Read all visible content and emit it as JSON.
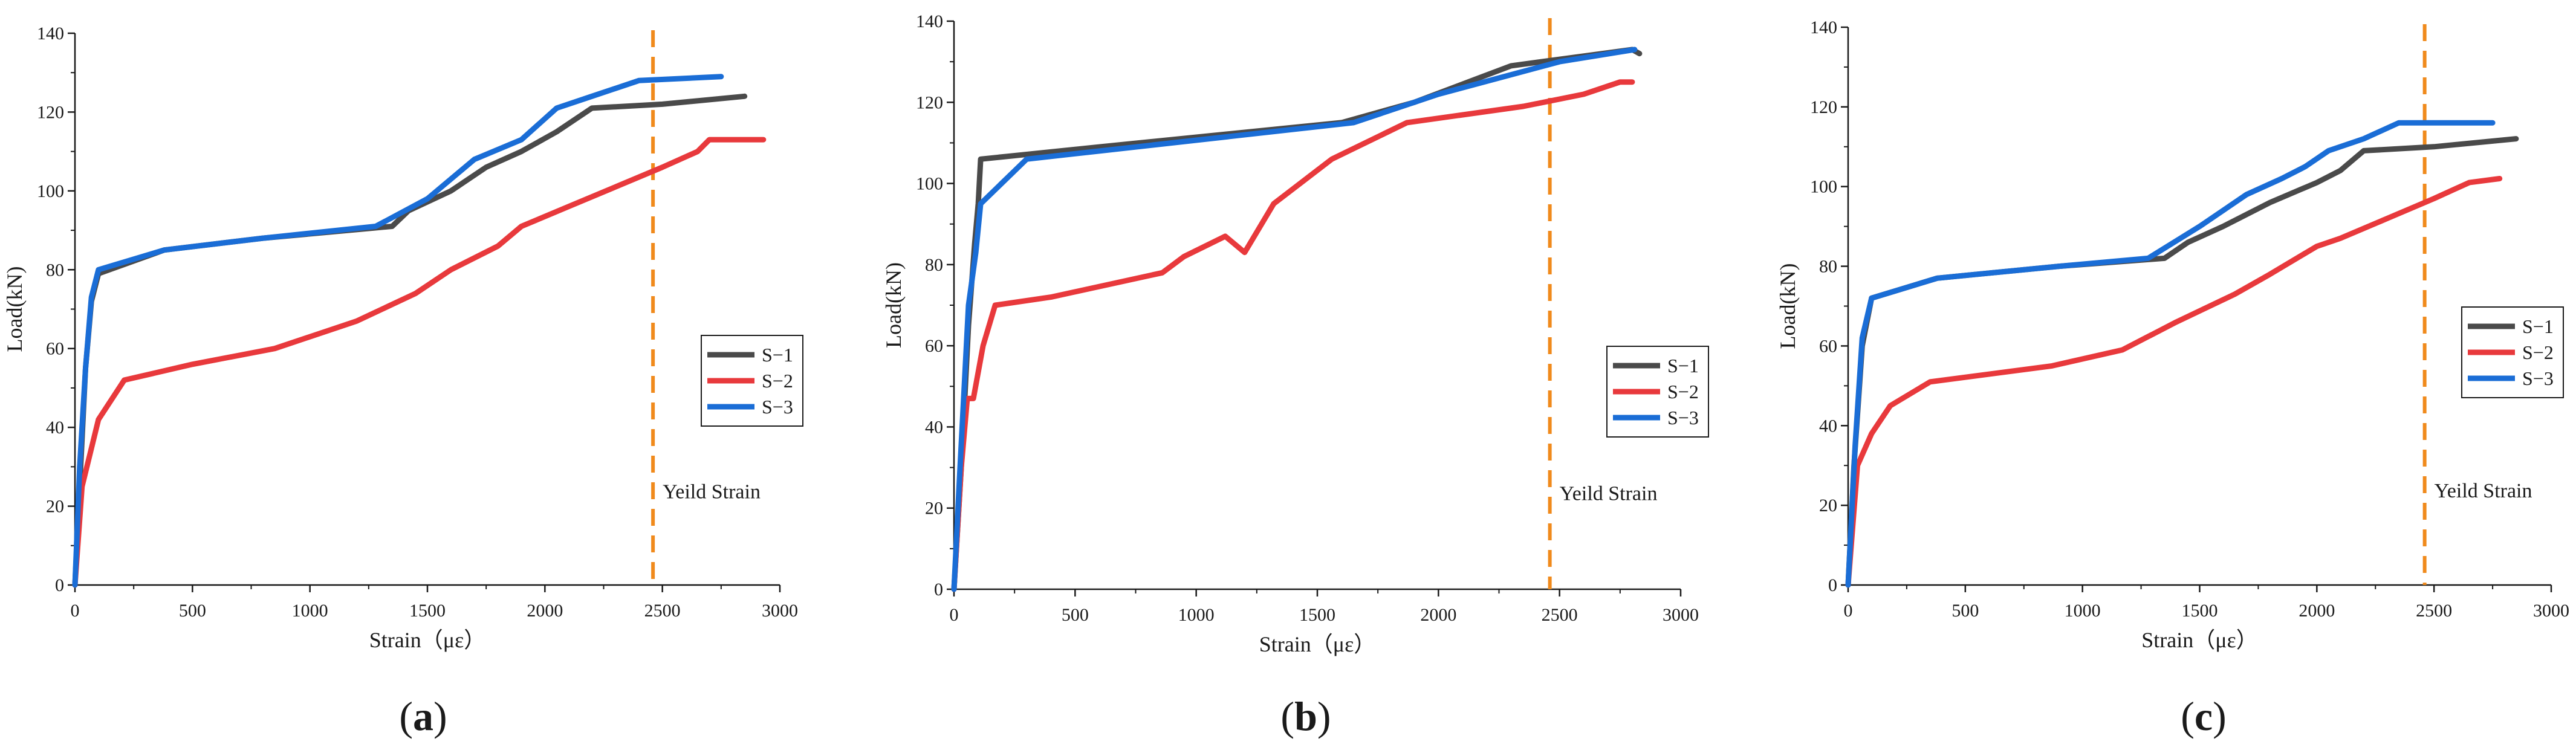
{
  "chart_data": [
    {
      "type": "line",
      "panel_label": "(a)",
      "xlabel": "Strain（με）",
      "ylabel": "Load(kN)",
      "xlim": [
        0,
        3000
      ],
      "ylim": [
        0,
        140
      ],
      "xticks": [
        0,
        500,
        1000,
        1500,
        2000,
        2500,
        3000
      ],
      "yticks": [
        0,
        20,
        40,
        60,
        80,
        100,
        120,
        140
      ],
      "grid": false,
      "legend_position": "right-middle",
      "annotation": {
        "text": "Yeild Strain",
        "x": 2460
      },
      "series": [
        {
          "name": "S−1",
          "color": "#4a4a4a",
          "points": [
            [
              0,
              0
            ],
            [
              20,
              25
            ],
            [
              45,
              55
            ],
            [
              70,
              72
            ],
            [
              100,
              79
            ],
            [
              380,
              85
            ],
            [
              800,
              88
            ],
            [
              1350,
              91
            ],
            [
              1420,
              95
            ],
            [
              1600,
              100
            ],
            [
              1750,
              106
            ],
            [
              1900,
              110
            ],
            [
              2050,
              115
            ],
            [
              2200,
              121
            ],
            [
              2500,
              122
            ],
            [
              2850,
              124
            ]
          ]
        },
        {
          "name": "S−2",
          "color": "#e8393c",
          "points": [
            [
              0,
              0
            ],
            [
              30,
              25
            ],
            [
              100,
              42
            ],
            [
              210,
              52
            ],
            [
              500,
              56
            ],
            [
              850,
              60
            ],
            [
              1200,
              67
            ],
            [
              1450,
              74
            ],
            [
              1600,
              80
            ],
            [
              1800,
              86
            ],
            [
              1900,
              91
            ],
            [
              2100,
              96
            ],
            [
              2500,
              106
            ],
            [
              2650,
              110
            ],
            [
              2700,
              113
            ],
            [
              2930,
              113
            ]
          ]
        },
        {
          "name": "S−3",
          "color": "#1a6dd6",
          "points": [
            [
              0,
              0
            ],
            [
              20,
              30
            ],
            [
              45,
              55
            ],
            [
              70,
              73
            ],
            [
              100,
              80
            ],
            [
              380,
              85
            ],
            [
              800,
              88
            ],
            [
              1280,
              91
            ],
            [
              1500,
              98
            ],
            [
              1700,
              108
            ],
            [
              1900,
              113
            ],
            [
              2050,
              121
            ],
            [
              2200,
              124
            ],
            [
              2400,
              128
            ],
            [
              2750,
              129
            ]
          ]
        }
      ]
    },
    {
      "type": "line",
      "panel_label": "(b)",
      "xlabel": "Strain（με）",
      "ylabel": "Load(kN)",
      "xlim": [
        0,
        3000
      ],
      "ylim": [
        0,
        140
      ],
      "xticks": [
        0,
        500,
        1000,
        1500,
        2000,
        2500,
        3000
      ],
      "yticks": [
        0,
        20,
        40,
        60,
        80,
        100,
        120,
        140
      ],
      "grid": false,
      "legend_position": "right-middle",
      "annotation": {
        "text": "Yeild Strain",
        "x": 2460
      },
      "series": [
        {
          "name": "S−1",
          "color": "#4a4a4a",
          "points": [
            [
              0,
              0
            ],
            [
              30,
              30
            ],
            [
              60,
              65
            ],
            [
              85,
              85
            ],
            [
              100,
              95
            ],
            [
              110,
              106
            ],
            [
              600,
              109
            ],
            [
              1600,
              115
            ],
            [
              1900,
              120
            ],
            [
              2300,
              129
            ],
            [
              2800,
              133
            ],
            [
              2830,
              132
            ]
          ]
        },
        {
          "name": "S−2",
          "color": "#e8393c",
          "points": [
            [
              0,
              0
            ],
            [
              30,
              30
            ],
            [
              55,
              47
            ],
            [
              80,
              47
            ],
            [
              120,
              60
            ],
            [
              170,
              70
            ],
            [
              400,
              72
            ],
            [
              860,
              78
            ],
            [
              950,
              82
            ],
            [
              1120,
              87
            ],
            [
              1200,
              83
            ],
            [
              1320,
              95
            ],
            [
              1560,
              106
            ],
            [
              1870,
              115
            ],
            [
              2350,
              119
            ],
            [
              2600,
              122
            ],
            [
              2750,
              125
            ],
            [
              2800,
              125
            ]
          ]
        },
        {
          "name": "S−3",
          "color": "#1a6dd6",
          "points": [
            [
              0,
              0
            ],
            [
              25,
              30
            ],
            [
              60,
              70
            ],
            [
              90,
              83
            ],
            [
              110,
              95
            ],
            [
              300,
              106
            ],
            [
              1650,
              115
            ],
            [
              2000,
              122
            ],
            [
              2500,
              130
            ],
            [
              2810,
              133
            ]
          ]
        }
      ]
    },
    {
      "type": "line",
      "panel_label": "(c)",
      "xlabel": "Strain（με）",
      "ylabel": "Load(kN)",
      "xlim": [
        0,
        3000
      ],
      "ylim": [
        0,
        140
      ],
      "xticks": [
        0,
        500,
        1000,
        1500,
        2000,
        2500,
        3000
      ],
      "yticks": [
        0,
        20,
        40,
        60,
        80,
        100,
        120,
        140
      ],
      "grid": false,
      "legend_position": "right-middle",
      "annotation": {
        "text": "Yeild Strain",
        "x": 2460
      },
      "series": [
        {
          "name": "S−1",
          "color": "#4a4a4a",
          "points": [
            [
              0,
              0
            ],
            [
              25,
              30
            ],
            [
              60,
              60
            ],
            [
              100,
              72
            ],
            [
              380,
              77
            ],
            [
              900,
              80
            ],
            [
              1350,
              82
            ],
            [
              1450,
              86
            ],
            [
              1600,
              90
            ],
            [
              1800,
              96
            ],
            [
              2000,
              101
            ],
            [
              2100,
              104
            ],
            [
              2200,
              109
            ],
            [
              2500,
              110
            ],
            [
              2850,
              112
            ]
          ]
        },
        {
          "name": "S−2",
          "color": "#e8393c",
          "points": [
            [
              0,
              0
            ],
            [
              40,
              30
            ],
            [
              100,
              38
            ],
            [
              180,
              45
            ],
            [
              350,
              51
            ],
            [
              870,
              55
            ],
            [
              1170,
              59
            ],
            [
              1400,
              66
            ],
            [
              1650,
              73
            ],
            [
              1800,
              78
            ],
            [
              2000,
              85
            ],
            [
              2100,
              87
            ],
            [
              2300,
              92
            ],
            [
              2500,
              97
            ],
            [
              2650,
              101
            ],
            [
              2780,
              102
            ]
          ]
        },
        {
          "name": "S−3",
          "color": "#1a6dd6",
          "points": [
            [
              0,
              0
            ],
            [
              30,
              35
            ],
            [
              60,
              62
            ],
            [
              100,
              72
            ],
            [
              380,
              77
            ],
            [
              900,
              80
            ],
            [
              1280,
              82
            ],
            [
              1500,
              90
            ],
            [
              1700,
              98
            ],
            [
              1850,
              102
            ],
            [
              1950,
              105
            ],
            [
              2050,
              109
            ],
            [
              2200,
              112
            ],
            [
              2350,
              116
            ],
            [
              2550,
              116
            ],
            [
              2750,
              116
            ]
          ]
        }
      ]
    }
  ]
}
